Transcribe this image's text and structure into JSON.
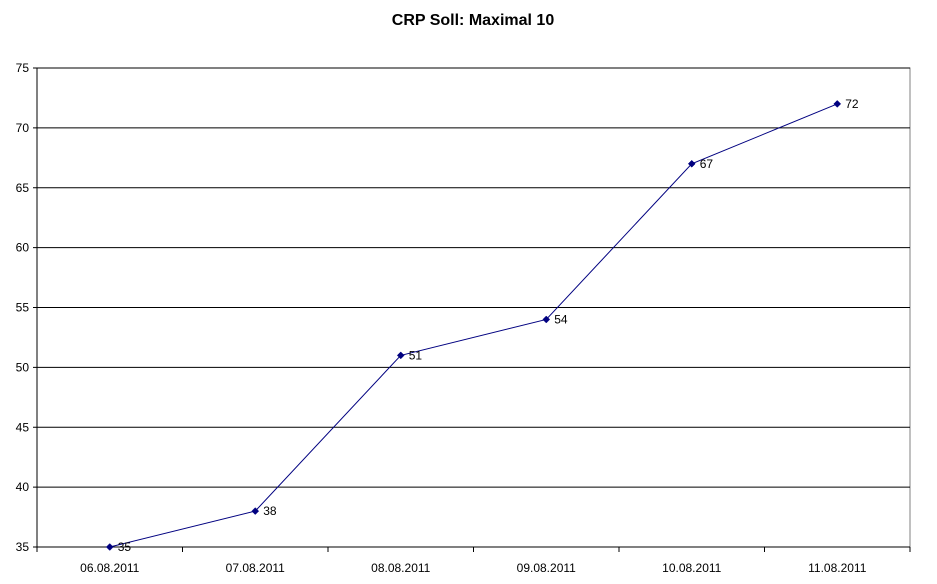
{
  "chart_data": {
    "type": "line",
    "title": "CRP Soll: Maximal 10",
    "xlabel": "",
    "ylabel": "",
    "categories": [
      "06.08.2011",
      "07.08.2011",
      "08.08.2011",
      "09.08.2011",
      "10.08.2011",
      "11.08.2011"
    ],
    "series": [
      {
        "values": [
          35,
          38,
          51,
          54,
          67,
          72
        ],
        "color": "#000080"
      }
    ],
    "ylim": [
      35,
      75
    ],
    "yticks": [
      35,
      40,
      45,
      50,
      55,
      60,
      65,
      70,
      75
    ],
    "grid": true,
    "legend": "none",
    "data_labels": true
  }
}
